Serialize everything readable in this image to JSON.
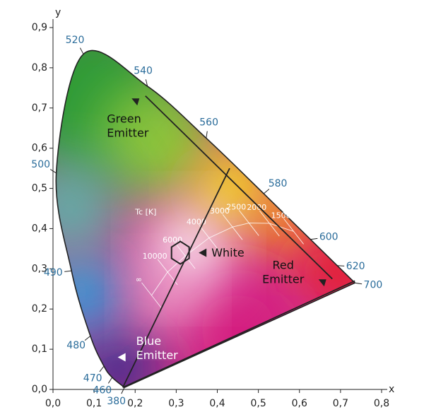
{
  "chart_data": {
    "type": "chromaticity",
    "x_label": "x",
    "y_label": "y",
    "xlim": [
      0,
      0.8
    ],
    "ylim": [
      0,
      0.9
    ],
    "xticks": [
      {
        "value": 0,
        "label": "0,0"
      },
      {
        "value": 0.1,
        "label": "0,1"
      },
      {
        "value": 0.2,
        "label": "0,2"
      },
      {
        "value": 0.3,
        "label": "0,3"
      },
      {
        "value": 0.4,
        "label": "0,4"
      },
      {
        "value": 0.5,
        "label": "0,5"
      },
      {
        "value": 0.6,
        "label": "0,6"
      },
      {
        "value": 0.7,
        "label": "0,7"
      },
      {
        "value": 0.8,
        "label": "0,8"
      }
    ],
    "yticks": [
      {
        "value": 0,
        "label": "0,0"
      },
      {
        "value": 0.1,
        "label": "0,1"
      },
      {
        "value": 0.2,
        "label": "0,2"
      },
      {
        "value": 0.3,
        "label": "0,3"
      },
      {
        "value": 0.4,
        "label": "0,4"
      },
      {
        "value": 0.5,
        "label": "0,5"
      },
      {
        "value": 0.6,
        "label": "0,6"
      },
      {
        "value": 0.7,
        "label": "0,7"
      },
      {
        "value": 0.8,
        "label": "0,8"
      },
      {
        "value": 0.9,
        "label": "0,9"
      }
    ],
    "locus": {
      "wavelengths": [
        380,
        460,
        470,
        480,
        490,
        500,
        520,
        540,
        560,
        580,
        600,
        620,
        700
      ],
      "x": [
        0.174,
        0.144,
        0.124,
        0.091,
        0.045,
        0.008,
        0.074,
        0.23,
        0.373,
        0.513,
        0.627,
        0.692,
        0.735
      ],
      "y": [
        0.005,
        0.03,
        0.058,
        0.133,
        0.295,
        0.538,
        0.834,
        0.754,
        0.625,
        0.487,
        0.373,
        0.308,
        0.265
      ],
      "color": "#2a6c9a"
    },
    "planckian": {
      "label": "Tc [K]",
      "temperatures": [
        "1500",
        "2000",
        "2500",
        "3000",
        "4000",
        "6000",
        "10000",
        "∞"
      ],
      "x": [
        0.586,
        0.527,
        0.477,
        0.437,
        0.38,
        0.322,
        0.279,
        0.24
      ],
      "y": [
        0.393,
        0.413,
        0.414,
        0.404,
        0.377,
        0.332,
        0.292,
        0.234
      ]
    },
    "gamut_lines": [
      {
        "x": [
          0.225,
          0.68
        ],
        "y": [
          0.73,
          0.275
        ]
      },
      {
        "x": [
          0.17,
          0.43
        ],
        "y": [
          0.005,
          0.55
        ]
      },
      {
        "x": [
          0.17,
          0.735
        ],
        "y": [
          0.005,
          0.27
        ]
      }
    ],
    "emitters": [
      {
        "label": [
          "Green",
          "Emitter"
        ],
        "x": 0.2,
        "y": 0.715
      },
      {
        "label": [
          "Red",
          "Emitter"
        ],
        "x": 0.655,
        "y": 0.265
      },
      {
        "label": [
          "Blue",
          "Emitter"
        ],
        "x": 0.168,
        "y": 0.08
      }
    ],
    "white_point": {
      "label": "White",
      "x": 0.31,
      "y": 0.34
    }
  }
}
